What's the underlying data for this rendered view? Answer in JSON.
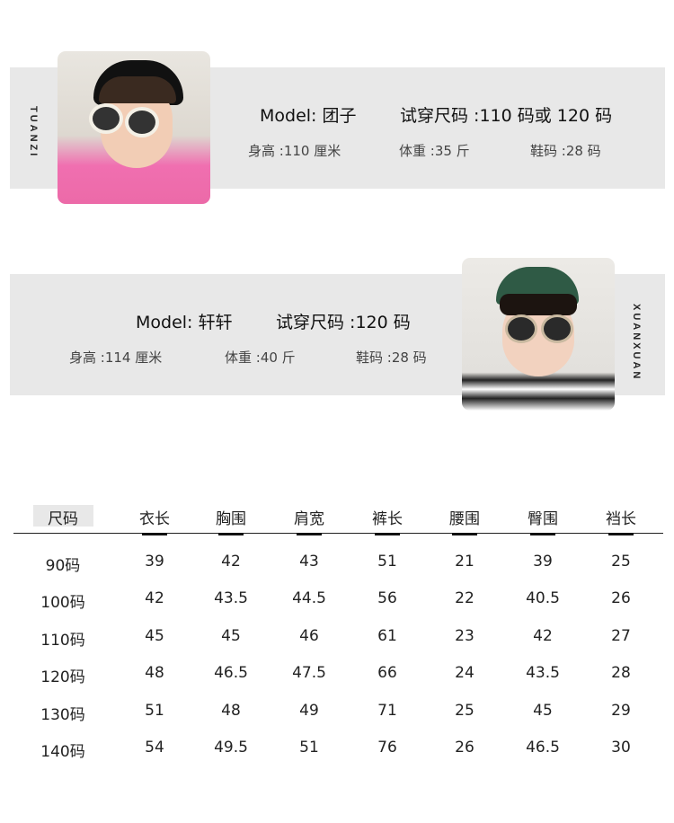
{
  "models": [
    {
      "name_tag": "TUANZI",
      "model": "Model: 团子",
      "try_size": "试穿尺码 :110 码或 120 码",
      "height": "身高 :110 厘米",
      "weight": "体重 :35 斤",
      "shoe": "鞋码 :28 码"
    },
    {
      "name_tag": "XUANXUAN",
      "model": "Model: 轩轩",
      "try_size": "试穿尺码 :120 码",
      "height": "身高 :114 厘米",
      "weight": "体重 :40 斤",
      "shoe": "鞋码 :28 码"
    }
  ],
  "size_table": {
    "headers": [
      "尺码",
      "衣长",
      "胸围",
      "肩宽",
      "裤长",
      "腰围",
      "臀围",
      "裆长"
    ],
    "rows": [
      [
        "90码",
        "39",
        "42",
        "43",
        "51",
        "21",
        "39",
        "25"
      ],
      [
        "100码",
        "42",
        "43.5",
        "44.5",
        "56",
        "22",
        "40.5",
        "26"
      ],
      [
        "110码",
        "45",
        "45",
        "46",
        "61",
        "23",
        "42",
        "27"
      ],
      [
        "120码",
        "48",
        "46.5",
        "47.5",
        "66",
        "24",
        "43.5",
        "28"
      ],
      [
        "130码",
        "51",
        "48",
        "49",
        "71",
        "25",
        "45",
        "29"
      ],
      [
        "140码",
        "54",
        "49.5",
        "51",
        "76",
        "26",
        "46.5",
        "30"
      ]
    ]
  }
}
